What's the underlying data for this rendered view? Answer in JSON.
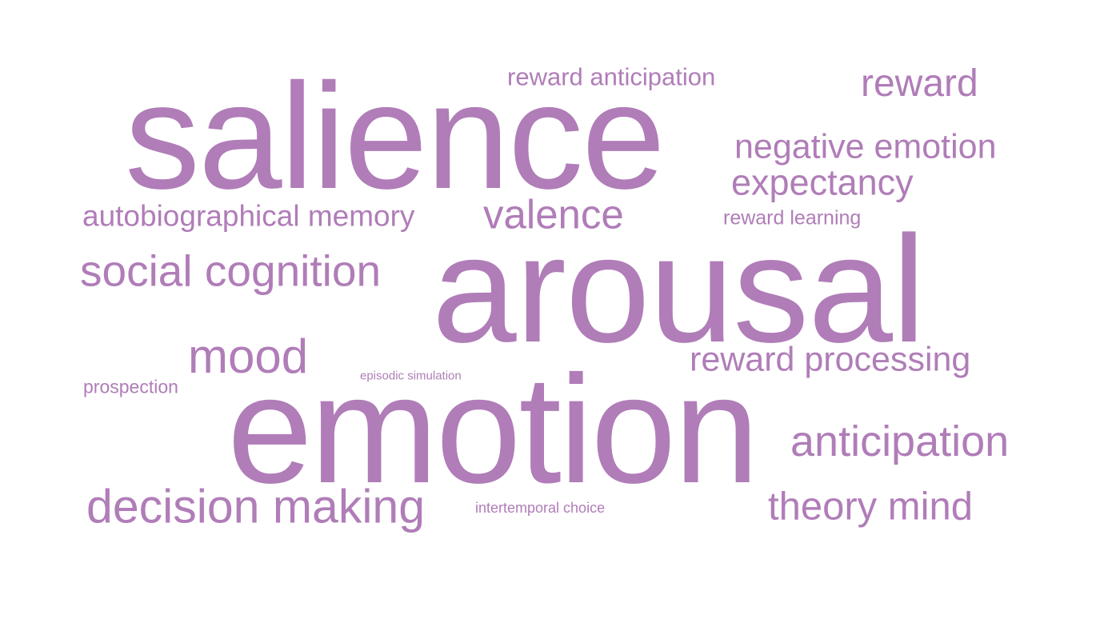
{
  "colors": {
    "word": "#b07db8",
    "background": "#ffffff"
  },
  "words": {
    "salience": "salience",
    "arousal": "arousal",
    "emotion": "emotion",
    "reward_anticipation": "reward anticipation",
    "reward": "reward",
    "negative_emotion": "negative emotion",
    "expectancy": "expectancy",
    "autobiographical_memory": "autobiographical memory",
    "valence": "valence",
    "reward_learning": "reward learning",
    "social_cognition": "social cognition",
    "mood": "mood",
    "reward_processing": "reward processing",
    "prospection": "prospection",
    "episodic_simulation": "episodic simulation",
    "anticipation": "anticipation",
    "decision_making": "decision making",
    "intertemporal_choice": "intertemporal choice",
    "theory_mind": "theory mind"
  }
}
